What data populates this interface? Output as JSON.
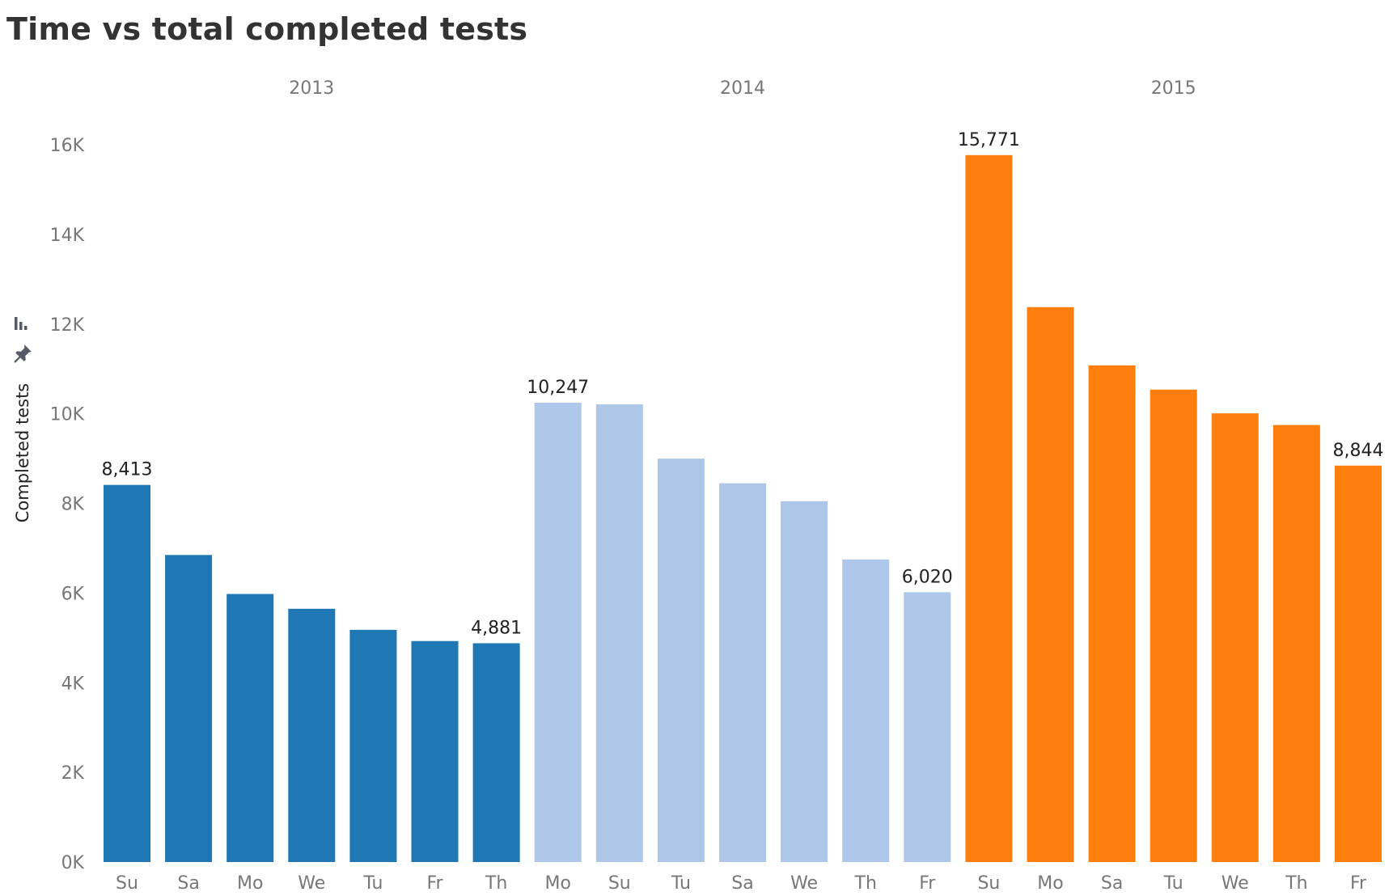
{
  "title": "Time vs total completed tests",
  "chart_data": {
    "type": "bar",
    "title": "Time vs total completed tests",
    "xlabel": "",
    "ylabel": "Completed tests",
    "ylim": [
      0,
      16500
    ],
    "y_ticks": [
      "0K",
      "2K",
      "4K",
      "6K",
      "8K",
      "10K",
      "12K",
      "14K",
      "16K"
    ],
    "y_tick_values": [
      0,
      2000,
      4000,
      6000,
      8000,
      10000,
      12000,
      14000,
      16000
    ],
    "grid": false,
    "legend": "none",
    "groups": [
      {
        "name": "2013",
        "color": "#1f77b4",
        "categories": [
          "Su",
          "Sa",
          "Mo",
          "We",
          "Tu",
          "Fr",
          "Th"
        ],
        "values": [
          8413,
          6850,
          5980,
          5650,
          5180,
          4930,
          4881
        ],
        "labels": [
          "8,413",
          "",
          "",
          "",
          "",
          "",
          "4,881"
        ]
      },
      {
        "name": "2014",
        "color": "#aec7e8",
        "categories": [
          "Mo",
          "Su",
          "Tu",
          "Sa",
          "We",
          "Th",
          "Fr"
        ],
        "values": [
          10247,
          10210,
          9000,
          8450,
          8050,
          6750,
          6020
        ],
        "labels": [
          "10,247",
          "",
          "",
          "",
          "",
          "",
          "6,020"
        ]
      },
      {
        "name": "2015",
        "color": "#ff7f0e",
        "categories": [
          "Su",
          "Mo",
          "Sa",
          "Tu",
          "We",
          "Th",
          "Fr"
        ],
        "values": [
          15771,
          12380,
          11080,
          10540,
          10010,
          9750,
          8844
        ],
        "labels": [
          "15,771",
          "",
          "",
          "",
          "",
          "",
          "8,844"
        ]
      }
    ]
  },
  "icons": {
    "sort": "bar-sort-icon",
    "pin": "pin-icon"
  }
}
